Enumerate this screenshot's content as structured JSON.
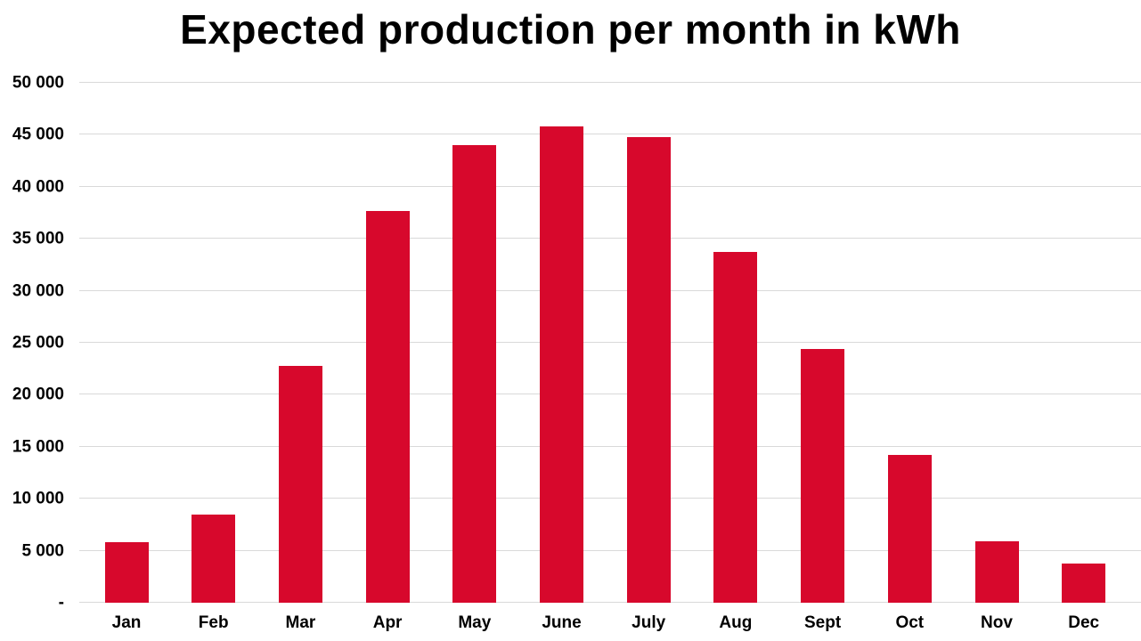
{
  "chart_data": {
    "type": "bar",
    "title": "Expected production per month in kWh",
    "categories": [
      "Jan",
      "Feb",
      "Mar",
      "Apr",
      "May",
      "June",
      "July",
      "Aug",
      "Sept",
      "Oct",
      "Nov",
      "Dec"
    ],
    "values": [
      5800,
      8500,
      22800,
      37700,
      44000,
      45800,
      44800,
      33700,
      24400,
      14200,
      5900,
      3800
    ],
    "xlabel": "",
    "ylabel": "",
    "ylim": [
      0,
      50000
    ],
    "ytick_step": 5000,
    "ytick_labels": [
      "-",
      "5 000",
      "10 000",
      "15 000",
      "20 000",
      "25 000",
      "30 000",
      "35 000",
      "40 000",
      "45 000",
      "50 000"
    ],
    "grid": true,
    "legend": "none",
    "colors": {
      "bar": "#d7082c",
      "gridline": "#d9d9d9",
      "text": "#000000",
      "background": "#ffffff"
    }
  }
}
